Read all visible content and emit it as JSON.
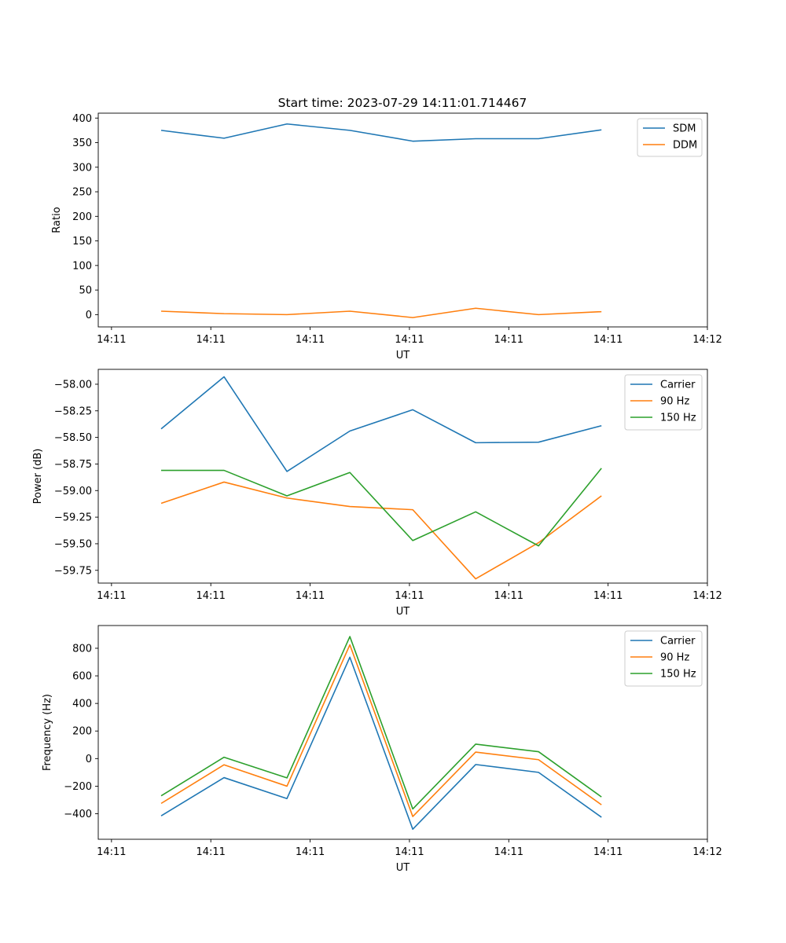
{
  "figure_title": "Start time: 2023-07-29 14:11:01.714467",
  "colors": {
    "blue": "#1f77b4",
    "orange": "#ff7f0e",
    "green": "#2ca02c"
  },
  "chart_data": [
    {
      "type": "line",
      "title": "Start time: 2023-07-29 14:11:01.714467",
      "xlabel": "UT",
      "ylabel": "Ratio",
      "x": [
        0.75,
        1.7,
        2.65,
        3.6,
        4.55,
        5.5,
        6.45,
        7.4
      ],
      "x_tick_positions": [
        0,
        1.5,
        3,
        4.5,
        6,
        7.5,
        9
      ],
      "x_tick_labels": [
        "14:11",
        "14:11",
        "14:11",
        "14:11",
        "14:11",
        "14:11",
        "14:12"
      ],
      "xlim": [
        -0.2,
        9.0
      ],
      "ylim": [
        -25,
        410
      ],
      "y_ticks": [
        0,
        50,
        100,
        150,
        200,
        250,
        300,
        350,
        400
      ],
      "y_tick_labels": [
        "0",
        "50",
        "100",
        "150",
        "200",
        "250",
        "300",
        "350",
        "400"
      ],
      "legend_position": "top-right",
      "series": [
        {
          "name": "SDM",
          "color": "#1f77b4",
          "values": [
            375,
            359,
            388,
            375,
            353,
            358,
            358,
            376
          ]
        },
        {
          "name": "DDM",
          "color": "#ff7f0e",
          "values": [
            7,
            2,
            0,
            7,
            -6,
            13,
            0,
            6
          ]
        }
      ]
    },
    {
      "type": "line",
      "title": "",
      "xlabel": "UT",
      "ylabel": "Power (dB)",
      "x": [
        0.75,
        1.7,
        2.65,
        3.6,
        4.55,
        5.5,
        6.45,
        7.4
      ],
      "x_tick_positions": [
        0,
        1.5,
        3,
        4.5,
        6,
        7.5,
        9
      ],
      "x_tick_labels": [
        "14:11",
        "14:11",
        "14:11",
        "14:11",
        "14:11",
        "14:11",
        "14:12"
      ],
      "xlim": [
        -0.2,
        9.0
      ],
      "ylim": [
        -59.87,
        -57.86
      ],
      "y_ticks": [
        -58.0,
        -58.25,
        -58.5,
        -58.75,
        -59.0,
        -59.25,
        -59.5,
        -59.75
      ],
      "y_tick_labels": [
        "−58.00",
        "−58.25",
        "−58.50",
        "−58.75",
        "−59.00",
        "−59.25",
        "−59.50",
        "−59.75"
      ],
      "legend_position": "top-right",
      "series": [
        {
          "name": "Carrier",
          "color": "#1f77b4",
          "values": [
            -58.42,
            -57.93,
            -58.82,
            -58.44,
            -58.24,
            -58.55,
            -58.545,
            -58.39
          ]
        },
        {
          "name": "90 Hz",
          "color": "#ff7f0e",
          "values": [
            -59.12,
            -58.92,
            -59.07,
            -59.15,
            -59.18,
            -59.83,
            -59.49,
            -59.05
          ]
        },
        {
          "name": "150 Hz",
          "color": "#2ca02c",
          "values": [
            -58.81,
            -58.81,
            -59.05,
            -58.83,
            -59.47,
            -59.2,
            -59.52,
            -58.79
          ]
        }
      ]
    },
    {
      "type": "line",
      "title": "",
      "xlabel": "UT",
      "ylabel": "Frequency (Hz)",
      "x": [
        0.75,
        1.7,
        2.65,
        3.6,
        4.55,
        5.5,
        6.45,
        7.4
      ],
      "x_tick_positions": [
        0,
        1.5,
        3,
        4.5,
        6,
        7.5,
        9
      ],
      "x_tick_labels": [
        "14:11",
        "14:11",
        "14:11",
        "14:11",
        "14:11",
        "14:11",
        "14:12"
      ],
      "xlim": [
        -0.2,
        9.0
      ],
      "ylim": [
        -585,
        965
      ],
      "y_ticks": [
        -400,
        -200,
        0,
        200,
        400,
        600,
        800
      ],
      "y_tick_labels": [
        "−400",
        "−200",
        "0",
        "200",
        "400",
        "600",
        "800"
      ],
      "legend_position": "top-right",
      "series": [
        {
          "name": "Carrier",
          "color": "#1f77b4",
          "values": [
            -415,
            -138,
            -290,
            735,
            -512,
            -43,
            -100,
            -425
          ]
        },
        {
          "name": "90 Hz",
          "color": "#ff7f0e",
          "values": [
            -325,
            -45,
            -200,
            825,
            -420,
            47,
            -8,
            -335
          ]
        },
        {
          "name": "150 Hz",
          "color": "#2ca02c",
          "values": [
            -270,
            10,
            -140,
            885,
            -365,
            105,
            50,
            -278
          ]
        }
      ]
    }
  ]
}
